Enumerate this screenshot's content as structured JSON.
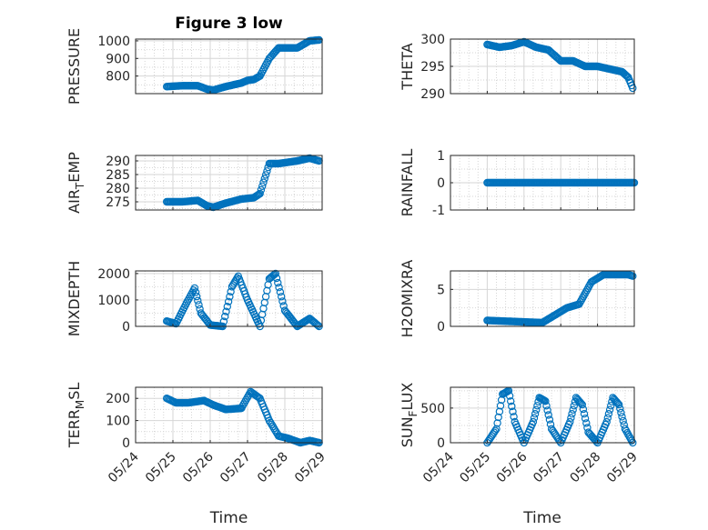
{
  "figure_title": "Figure 3 low",
  "colors": {
    "marker": "#0072BD",
    "axis": "#262626",
    "grid": "#d6d6d6"
  },
  "chart_data": [
    {
      "type": "scatter",
      "title": "Figure 3 low",
      "ylabel": "PRESSURE",
      "xlabel": "",
      "xlim": [
        "05/24",
        "05/29"
      ],
      "ylim": [
        700,
        1010
      ],
      "yticks": [
        800,
        900,
        1000
      ],
      "xtick_labels": [
        "05/24",
        "05/25",
        "05/26",
        "05/27",
        "05/28",
        "05/29"
      ],
      "show_xticklabels": false,
      "grid": true,
      "x": [
        "05/24 20:00",
        "05/25 06:00",
        "05/25 16:00",
        "05/25 22:00",
        "05/26 02:00",
        "05/26 10:00",
        "05/26 20:00",
        "05/27 00:00",
        "05/27 04:00",
        "05/27 08:00",
        "05/27 14:00",
        "05/27 20:00",
        "05/28 08:00",
        "05/28 16:00",
        "05/28 22:00"
      ],
      "y": [
        740,
        745,
        745,
        725,
        720,
        740,
        760,
        775,
        780,
        800,
        900,
        960,
        960,
        1000,
        1005
      ]
    },
    {
      "type": "scatter",
      "ylabel": "THETA",
      "xlabel": "",
      "xlim": [
        "05/24",
        "05/29"
      ],
      "ylim": [
        290,
        300
      ],
      "yticks": [
        290,
        295,
        300
      ],
      "xtick_labels": [
        "05/24",
        "05/25",
        "05/26",
        "05/27",
        "05/28",
        "05/29"
      ],
      "show_xticklabels": false,
      "grid": true,
      "x": [
        "05/25 00:00",
        "05/25 08:00",
        "05/25 16:00",
        "05/26 00:00",
        "05/26 08:00",
        "05/26 16:00",
        "05/27 00:00",
        "05/27 08:00",
        "05/27 16:00",
        "05/28 00:00",
        "05/28 08:00",
        "05/28 16:00",
        "05/28 20:00",
        "05/28 23:00"
      ],
      "y": [
        299,
        298.5,
        298.8,
        299.5,
        298.5,
        298,
        296,
        296,
        295,
        295,
        294.5,
        294,
        293,
        291
      ]
    },
    {
      "type": "scatter",
      "ylabel": "AIR_TEMP",
      "xlabel": "",
      "xlim": [
        "05/24",
        "05/29"
      ],
      "ylim": [
        272,
        292
      ],
      "yticks": [
        275,
        280,
        285,
        290
      ],
      "xtick_labels": [
        "05/24",
        "05/25",
        "05/26",
        "05/27",
        "05/28",
        "05/29"
      ],
      "show_xticklabels": false,
      "grid": true,
      "x": [
        "05/24 20:00",
        "05/25 06:00",
        "05/25 16:00",
        "05/25 22:00",
        "05/26 02:00",
        "05/26 10:00",
        "05/26 20:00",
        "05/27 04:00",
        "05/27 08:00",
        "05/27 14:00",
        "05/27 20:00",
        "05/28 08:00",
        "05/28 16:00",
        "05/28 22:00"
      ],
      "y": [
        275,
        275,
        275.5,
        273.5,
        273,
        274.5,
        276,
        276.5,
        278,
        289,
        289,
        290,
        291,
        290
      ]
    },
    {
      "type": "scatter",
      "ylabel": "RAINFALL",
      "xlabel": "",
      "xlim": [
        "05/24",
        "05/29"
      ],
      "ylim": [
        -1,
        1
      ],
      "yticks": [
        -1,
        0,
        1
      ],
      "xtick_labels": [
        "05/24",
        "05/25",
        "05/26",
        "05/27",
        "05/28",
        "05/29"
      ],
      "show_xticklabels": false,
      "grid": true,
      "x": [
        "05/25 00:00",
        "05/25 12:00",
        "05/26 00:00",
        "05/26 12:00",
        "05/27 00:00",
        "05/27 12:00",
        "05/28 00:00",
        "05/28 12:00",
        "05/29 00:00"
      ],
      "y": [
        0,
        0,
        0,
        0,
        0,
        0,
        0,
        0,
        0
      ]
    },
    {
      "type": "scatter",
      "ylabel": "MIXDEPTH",
      "xlabel": "",
      "xlim": [
        "05/24",
        "05/29"
      ],
      "ylim": [
        0,
        2100
      ],
      "yticks": [
        0,
        1000,
        2000
      ],
      "xtick_labels": [
        "05/24",
        "05/25",
        "05/26",
        "05/27",
        "05/28",
        "05/29"
      ],
      "show_xticklabels": false,
      "grid": true,
      "x": [
        "05/24 20:00",
        "05/25 02:00",
        "05/25 08:00",
        "05/25 14:00",
        "05/25 18:00",
        "05/26 00:00",
        "05/26 08:00",
        "05/26 14:00",
        "05/26 18:00",
        "05/27 00:00",
        "05/27 08:00",
        "05/27 14:00",
        "05/27 18:00",
        "05/28 00:00",
        "05/28 08:00",
        "05/28 16:00",
        "05/28 22:00"
      ],
      "y": [
        200,
        100,
        800,
        1450,
        500,
        50,
        0,
        1500,
        1900,
        1000,
        0,
        1800,
        2000,
        600,
        0,
        300,
        0
      ]
    },
    {
      "type": "scatter",
      "ylabel": "H2OMIXRA",
      "xlabel": "",
      "xlim": [
        "05/24",
        "05/29"
      ],
      "ylim": [
        0,
        7.5
      ],
      "yticks": [
        0,
        5
      ],
      "xtick_labels": [
        "05/24",
        "05/25",
        "05/26",
        "05/27",
        "05/28",
        "05/29"
      ],
      "show_xticklabels": false,
      "grid": true,
      "x": [
        "05/25 00:00",
        "05/25 12:00",
        "05/26 00:00",
        "05/26 12:00",
        "05/26 20:00",
        "05/27 04:00",
        "05/27 12:00",
        "05/27 20:00",
        "05/28 04:00",
        "05/28 12:00",
        "05/28 20:00",
        "05/28 23:00"
      ],
      "y": [
        0.8,
        0.7,
        0.6,
        0.5,
        1.5,
        2.5,
        3.0,
        6.0,
        7.0,
        7.0,
        7.0,
        6.8
      ]
    },
    {
      "type": "scatter",
      "ylabel": "TERR_MSL",
      "xlabel": "Time",
      "xlim": [
        "05/24",
        "05/29"
      ],
      "ylim": [
        0,
        250
      ],
      "yticks": [
        0,
        100,
        200
      ],
      "xtick_labels": [
        "05/24",
        "05/25",
        "05/26",
        "05/27",
        "05/28",
        "05/29"
      ],
      "show_xticklabels": true,
      "grid": true,
      "x": [
        "05/24 20:00",
        "05/25 02:00",
        "05/25 10:00",
        "05/25 20:00",
        "05/26 02:00",
        "05/26 10:00",
        "05/26 20:00",
        "05/27 02:00",
        "05/27 08:00",
        "05/27 14:00",
        "05/27 20:00",
        "05/28 02:00",
        "05/28 10:00",
        "05/28 16:00",
        "05/28 22:00"
      ],
      "y": [
        200,
        180,
        180,
        190,
        170,
        150,
        155,
        230,
        200,
        100,
        30,
        20,
        0,
        10,
        0
      ]
    },
    {
      "type": "scatter",
      "ylabel": "SUN_FLUX",
      "xlabel": "Time",
      "xlim": [
        "05/24",
        "05/29"
      ],
      "ylim": [
        0,
        800
      ],
      "yticks": [
        0,
        500
      ],
      "xtick_labels": [
        "05/24",
        "05/25",
        "05/26",
        "05/27",
        "05/28",
        "05/29"
      ],
      "show_xticklabels": true,
      "grid": true,
      "x": [
        "05/25 00:00",
        "05/25 06:00",
        "05/25 10:00",
        "05/25 14:00",
        "05/25 18:00",
        "05/26 00:00",
        "05/26 06:00",
        "05/26 10:00",
        "05/26 14:00",
        "05/26 18:00",
        "05/27 00:00",
        "05/27 06:00",
        "05/27 10:00",
        "05/27 14:00",
        "05/27 18:00",
        "05/28 00:00",
        "05/28 06:00",
        "05/28 10:00",
        "05/28 14:00",
        "05/28 18:00",
        "05/28 23:00"
      ],
      "y": [
        0,
        200,
        700,
        750,
        300,
        0,
        300,
        650,
        600,
        200,
        0,
        300,
        650,
        550,
        150,
        0,
        300,
        650,
        550,
        200,
        0
      ]
    }
  ]
}
